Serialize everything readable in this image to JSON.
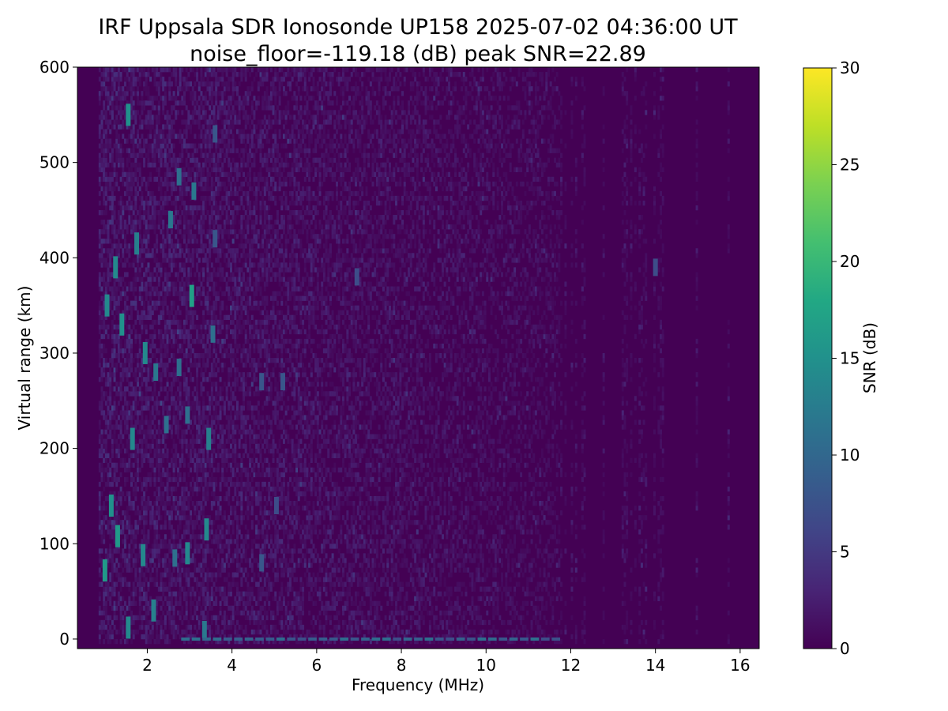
{
  "chart_data": {
    "type": "heatmap",
    "title": "IRF Uppsala SDR Ionosonde UP158 2025-07-02 04:36:00  UT",
    "subtitle": "noise_floor=-119.18 (dB) peak SNR=22.89",
    "xlabel": "Frequency (MHz)",
    "ylabel": "Virtual range (km)",
    "xlim": [
      0.35,
      16.45
    ],
    "ylim": [
      -10,
      600
    ],
    "x_ticks": [
      2,
      4,
      6,
      8,
      10,
      12,
      14,
      16
    ],
    "y_ticks": [
      0,
      100,
      200,
      300,
      400,
      500,
      600
    ],
    "sounding_band_mhz": [
      0.85,
      16.3
    ],
    "colorbar": {
      "label": "SNR (dB)",
      "range": [
        0,
        30
      ],
      "ticks": [
        0,
        5,
        10,
        15,
        20,
        25,
        30
      ],
      "colormap": "viridis"
    },
    "noise_floor_db": -119.18,
    "peak_snr_db": 22.89,
    "echo_traces": [
      {
        "freq_mhz": 1.0,
        "range_km": 72,
        "snr_db": 16
      },
      {
        "freq_mhz": 1.05,
        "range_km": 350,
        "snr_db": 14
      },
      {
        "freq_mhz": 1.15,
        "range_km": 140,
        "snr_db": 15
      },
      {
        "freq_mhz": 1.25,
        "range_km": 390,
        "snr_db": 14
      },
      {
        "freq_mhz": 1.3,
        "range_km": 108,
        "snr_db": 16
      },
      {
        "freq_mhz": 1.4,
        "range_km": 330,
        "snr_db": 15
      },
      {
        "freq_mhz": 1.55,
        "range_km": 550,
        "snr_db": 15
      },
      {
        "freq_mhz": 1.55,
        "range_km": 12,
        "snr_db": 14
      },
      {
        "freq_mhz": 1.65,
        "range_km": 210,
        "snr_db": 14
      },
      {
        "freq_mhz": 1.75,
        "range_km": 415,
        "snr_db": 13
      },
      {
        "freq_mhz": 1.9,
        "range_km": 88,
        "snr_db": 14
      },
      {
        "freq_mhz": 1.95,
        "range_km": 300,
        "snr_db": 14
      },
      {
        "freq_mhz": 2.15,
        "range_km": 30,
        "snr_db": 13
      },
      {
        "freq_mhz": 2.2,
        "range_km": 280,
        "snr_db": 12
      },
      {
        "freq_mhz": 2.45,
        "range_km": 225,
        "snr_db": 11
      },
      {
        "freq_mhz": 2.55,
        "range_km": 440,
        "snr_db": 12
      },
      {
        "freq_mhz": 2.65,
        "range_km": 85,
        "snr_db": 11
      },
      {
        "freq_mhz": 2.75,
        "range_km": 285,
        "snr_db": 11
      },
      {
        "freq_mhz": 2.75,
        "range_km": 485,
        "snr_db": 11
      },
      {
        "freq_mhz": 2.95,
        "range_km": 235,
        "snr_db": 11
      },
      {
        "freq_mhz": 2.95,
        "range_km": 90,
        "snr_db": 14
      },
      {
        "freq_mhz": 3.05,
        "range_km": 360,
        "snr_db": 17
      },
      {
        "freq_mhz": 3.1,
        "range_km": 470,
        "snr_db": 12
      },
      {
        "freq_mhz": 3.35,
        "range_km": 10,
        "snr_db": 12
      },
      {
        "freq_mhz": 3.4,
        "range_km": 115,
        "snr_db": 14
      },
      {
        "freq_mhz": 3.45,
        "range_km": 210,
        "snr_db": 13
      },
      {
        "freq_mhz": 3.55,
        "range_km": 320,
        "snr_db": 11
      },
      {
        "freq_mhz": 3.6,
        "range_km": 530,
        "snr_db": 8
      },
      {
        "freq_mhz": 3.6,
        "range_km": 420,
        "snr_db": 8
      },
      {
        "freq_mhz": 4.7,
        "range_km": 270,
        "snr_db": 8
      },
      {
        "freq_mhz": 4.7,
        "range_km": 80,
        "snr_db": 8
      },
      {
        "freq_mhz": 5.05,
        "range_km": 140,
        "snr_db": 7
      },
      {
        "freq_mhz": 5.2,
        "range_km": 270,
        "snr_db": 8
      },
      {
        "freq_mhz": 6.95,
        "range_km": 380,
        "snr_db": 7
      },
      {
        "freq_mhz": 14.0,
        "range_km": 390,
        "snr_db": 7
      }
    ],
    "ground_echo_km": 0,
    "ground_echo_freq_range_mhz": [
      2.8,
      11.7
    ]
  }
}
